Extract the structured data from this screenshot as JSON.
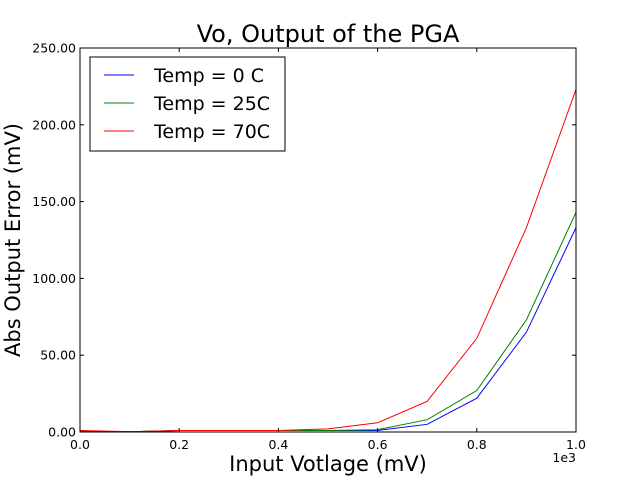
{
  "chart_data": {
    "type": "line",
    "title": "Vo, Output of the PGA",
    "xlabel": "Input Votlage (mV)",
    "ylabel": "Abs Output Error (mV)",
    "x_offset_label": "1e3",
    "x": [
      0.0,
      0.1,
      0.2,
      0.3,
      0.4,
      0.5,
      0.6,
      0.7,
      0.8,
      0.9,
      1.0
    ],
    "xlim": [
      0.0,
      1.0
    ],
    "ylim": [
      0,
      250
    ],
    "x_ticks": [
      0.0,
      0.2,
      0.4,
      0.6,
      0.8,
      1.0
    ],
    "x_tick_labels": [
      "0.0",
      "0.2",
      "0.4",
      "0.6",
      "0.8",
      "1.0"
    ],
    "y_ticks": [
      0,
      50,
      100,
      150,
      200,
      250
    ],
    "y_tick_labels": [
      "0.00",
      "50.00",
      "100.00",
      "150.00",
      "200.00",
      "250.00"
    ],
    "grid": false,
    "legend_position": "top-left",
    "series": [
      {
        "name": "Temp = 0 C",
        "color": "#0000ff",
        "values": [
          0.5,
          0.2,
          1.0,
          1.0,
          1.0,
          1.0,
          1.0,
          5.0,
          22.0,
          65.0,
          133.0
        ]
      },
      {
        "name": "Temp = 25C",
        "color": "#008000",
        "values": [
          0.5,
          0.2,
          1.0,
          1.0,
          1.0,
          1.0,
          1.5,
          8.0,
          27.0,
          73.0,
          143.0
        ]
      },
      {
        "name": "Temp = 70C",
        "color": "#ff0000",
        "values": [
          1.0,
          0.2,
          1.0,
          1.0,
          1.0,
          2.0,
          6.0,
          20.0,
          61.0,
          133.0,
          223.0
        ]
      }
    ]
  }
}
